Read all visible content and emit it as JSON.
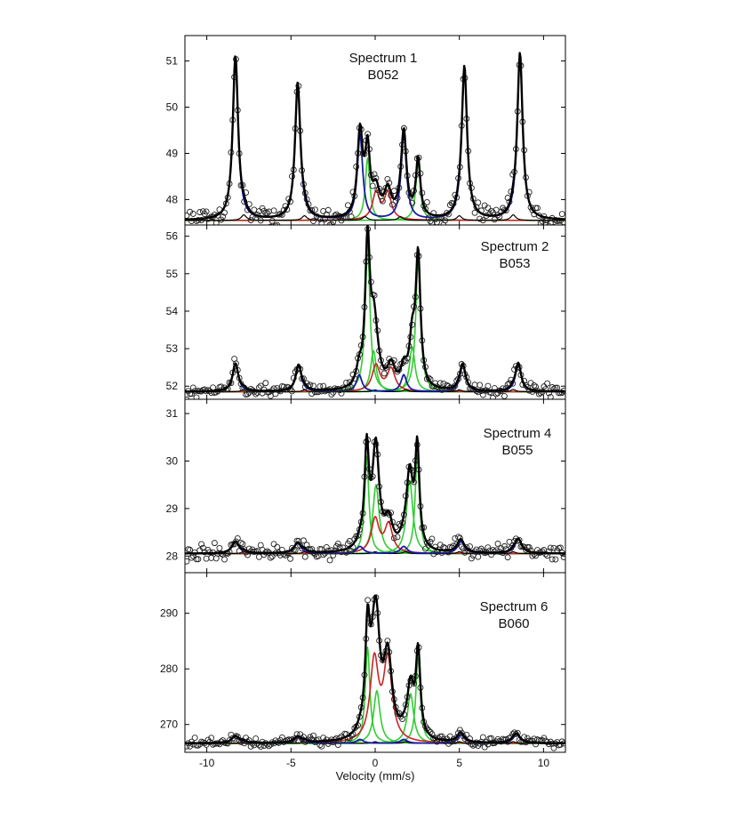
{
  "chart_data": {
    "type": "line",
    "xlabel": "Velocity (mm/s)",
    "xlim": [
      -11.3,
      11.3
    ],
    "x_ticks": [
      -10,
      -5,
      0,
      5,
      10
    ],
    "colors": {
      "data_points": "#222222",
      "total_fit": "#000000",
      "sextet_sites": "#1a1aa8",
      "doublet_sites": "#33cc33",
      "ferric_doublet": "#cc2222",
      "minor_sextet": "#000000"
    },
    "panels": [
      {
        "label_line1": "Spectrum 1",
        "label_line2": "B052",
        "ylim": [
          47.45,
          51.55
        ],
        "y_ticks": [
          48,
          49,
          50,
          51
        ],
        "baseline": 47.55,
        "sextet": {
          "lines": [
            -8.3,
            -4.6,
            -0.9,
            1.7,
            5.3,
            8.6
          ],
          "heights": [
            3.55,
            2.95,
            1.85,
            1.85,
            3.3,
            3.6
          ],
          "width": 0.38
        },
        "doublets": [
          {
            "lines": [
              -0.45,
              2.55
            ],
            "heights": [
              1.35,
              1.25
            ],
            "width": 0.32
          }
        ],
        "ferric": {
          "lines": [
            0.05,
            0.75
          ],
          "heights": [
            0.58,
            0.58
          ],
          "width": 0.5
        },
        "minor": {
          "lines": [
            -7.8,
            -4.2,
            -0.6,
            1.5,
            5.0,
            8.2
          ],
          "heights": [
            0.12,
            0.1,
            0.08,
            0.08,
            0.1,
            0.12
          ],
          "width": 0.35
        },
        "noise": 0.15
      },
      {
        "label_line1": "Spectrum 2",
        "label_line2": "B053",
        "ylim": [
          51.65,
          56.3
        ],
        "y_ticks": [
          52,
          53,
          54,
          55,
          56
        ],
        "baseline": 51.85,
        "sextet": {
          "lines": [
            -8.3,
            -4.55,
            -0.95,
            1.7,
            5.2,
            8.5
          ],
          "heights": [
            0.75,
            0.7,
            0.45,
            0.45,
            0.7,
            0.75
          ],
          "width": 0.4
        },
        "doublets": [
          {
            "lines": [
              -0.45,
              2.55
            ],
            "heights": [
              3.9,
              3.5
            ],
            "width": 0.34
          },
          {
            "lines": [
              -0.1,
              2.2
            ],
            "heights": [
              1.1,
              1.2
            ],
            "width": 0.4
          }
        ],
        "ferric": {
          "lines": [
            0.05,
            0.95
          ],
          "heights": [
            0.7,
            0.6
          ],
          "width": 0.55
        },
        "minor": {
          "lines": [
            -7.8,
            -4.2,
            0.0,
            1.8,
            5.0,
            8.2
          ],
          "heights": [
            0.06,
            0.05,
            0.05,
            0.05,
            0.05,
            0.06
          ],
          "width": 0.35
        },
        "noise": 0.12
      },
      {
        "label_line1": "Spectrum 4",
        "label_line2": "B055",
        "ylim": [
          27.65,
          31.3
        ],
        "y_ticks": [
          28,
          29,
          30,
          31
        ],
        "baseline": 28.05,
        "sextet": {
          "lines": [
            -8.3,
            -4.6,
            -0.9,
            1.7,
            5.1,
            8.5
          ],
          "heights": [
            0.25,
            0.22,
            0.15,
            0.15,
            0.25,
            0.3
          ],
          "width": 0.5
        },
        "doublets": [
          {
            "lines": [
              -0.5,
              2.5
            ],
            "heights": [
              2.05,
              2.1
            ],
            "width": 0.3
          },
          {
            "lines": [
              0.05,
              2.05
            ],
            "heights": [
              1.45,
              1.55
            ],
            "width": 0.45
          }
        ],
        "ferric": {
          "lines": [
            0.0,
            0.8
          ],
          "heights": [
            0.72,
            0.6
          ],
          "width": 0.55
        },
        "minor": {
          "lines": [
            -7.8,
            -4.2,
            0.0,
            1.8,
            5.0,
            8.2
          ],
          "heights": [
            0.04,
            0.04,
            0.04,
            0.04,
            0.04,
            0.04
          ],
          "width": 0.35
        },
        "noise": 0.12
      },
      {
        "label_line1": "Spectrum 6",
        "label_line2": "B060",
        "ylim": [
          265.0,
          297.3
        ],
        "y_ticks": [
          270,
          280,
          290
        ],
        "baseline": 266.6,
        "sextet": {
          "lines": [
            -8.3,
            -4.6,
            -0.9,
            1.7,
            5.1,
            8.4
          ],
          "heights": [
            1.3,
            1.1,
            0.7,
            0.7,
            1.5,
            1.6
          ],
          "width": 0.5
        },
        "doublets": [
          {
            "lines": [
              -0.45,
              2.55
            ],
            "heights": [
              17.3,
              15.5
            ],
            "width": 0.32
          },
          {
            "lines": [
              0.1,
              2.1
            ],
            "heights": [
              9.5,
              9.0
            ],
            "width": 0.45
          }
        ],
        "ferric": {
          "lines": [
            -0.05,
            0.75
          ],
          "heights": [
            14.5,
            14.5
          ],
          "width": 0.6
        },
        "minor": {
          "lines": [
            -7.8,
            -4.2,
            0.0,
            1.8,
            5.0,
            8.2
          ],
          "heights": [
            0.3,
            0.3,
            0.3,
            0.3,
            0.3,
            0.3
          ],
          "width": 0.35
        },
        "noise": 0.6
      }
    ]
  }
}
